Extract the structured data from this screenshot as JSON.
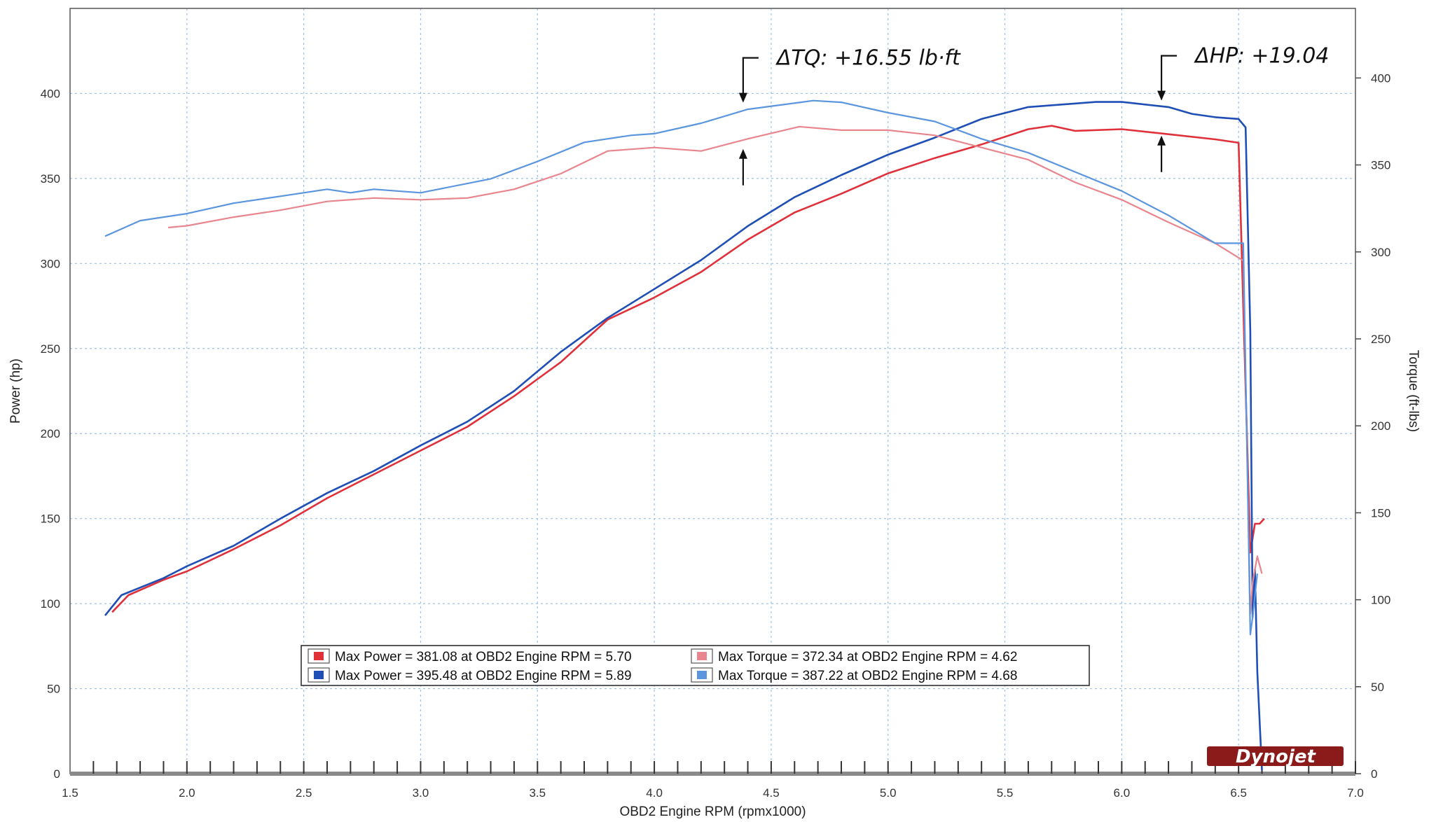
{
  "chart_data": {
    "type": "line",
    "xlabel": "OBD2 Engine RPM (rpmx1000)",
    "ylabel_left": "Power (hp)",
    "ylabel_right": "Torque (ft-lbs)",
    "xlim": [
      1.5,
      7.0
    ],
    "ylim_left": [
      0,
      450
    ],
    "ylim_right": [
      0,
      440
    ],
    "x_ticks": [
      "1.5",
      "2.0",
      "2.5",
      "3.0",
      "3.5",
      "4.0",
      "4.5",
      "5.0",
      "5.5",
      "6.0",
      "6.5",
      "7.0"
    ],
    "y_left_ticks": [
      "0",
      "50",
      "100",
      "150",
      "200",
      "250",
      "300",
      "350",
      "400"
    ],
    "y_right_ticks": [
      "0",
      "50",
      "100",
      "150",
      "200",
      "250",
      "300",
      "350",
      "400"
    ],
    "grid": true,
    "colors": {
      "power_run1": "#e0303a",
      "power_run2": "#1f4fb5",
      "torque_run1": "#e8858e",
      "torque_run2": "#5a95de"
    },
    "series": [
      {
        "key": "power_run1",
        "axis": "left",
        "x": [
          1.68,
          1.75,
          1.9,
          2.0,
          2.2,
          2.4,
          2.6,
          2.8,
          3.0,
          3.2,
          3.4,
          3.6,
          3.8,
          4.0,
          4.2,
          4.4,
          4.6,
          4.8,
          5.0,
          5.2,
          5.4,
          5.6,
          5.7,
          5.8,
          6.0,
          6.2,
          6.4,
          6.5,
          6.55,
          6.57,
          6.59,
          6.61
        ],
        "y": [
          95,
          105,
          114,
          119,
          132,
          146,
          162,
          176,
          190,
          204,
          222,
          242,
          267,
          280,
          295,
          314,
          330,
          341,
          353,
          362,
          370,
          379,
          381,
          378,
          379,
          376,
          373,
          371,
          130,
          147,
          147,
          150
        ]
      },
      {
        "key": "power_run2",
        "axis": "left",
        "x": [
          1.65,
          1.72,
          1.9,
          2.0,
          2.2,
          2.4,
          2.6,
          2.8,
          3.0,
          3.2,
          3.4,
          3.6,
          3.8,
          4.0,
          4.2,
          4.4,
          4.6,
          4.8,
          5.0,
          5.2,
          5.4,
          5.6,
          5.89,
          6.0,
          6.2,
          6.3,
          6.4,
          6.5,
          6.53,
          6.55,
          6.56,
          6.57,
          6.58,
          6.6
        ],
        "y": [
          93,
          105,
          115,
          122,
          134,
          150,
          165,
          178,
          193,
          207,
          225,
          248,
          268,
          285,
          302,
          322,
          339,
          352,
          364,
          374,
          385,
          392,
          395,
          395,
          392,
          388,
          386,
          385,
          380,
          260,
          92,
          120,
          60,
          2
        ]
      },
      {
        "key": "torque_run1",
        "axis": "right",
        "x": [
          1.92,
          2.0,
          2.2,
          2.4,
          2.6,
          2.8,
          3.0,
          3.2,
          3.4,
          3.6,
          3.8,
          4.0,
          4.2,
          4.4,
          4.62,
          4.8,
          5.0,
          5.2,
          5.4,
          5.6,
          5.8,
          6.0,
          6.2,
          6.4,
          6.52,
          6.55,
          6.56,
          6.58,
          6.6
        ],
        "y": [
          314,
          315,
          320,
          324,
          329,
          331,
          330,
          331,
          336,
          345,
          358,
          360,
          358,
          365,
          372,
          370,
          370,
          367,
          360,
          353,
          340,
          330,
          317,
          305,
          295,
          92,
          110,
          125,
          115
        ]
      },
      {
        "key": "torque_run2",
        "axis": "right",
        "x": [
          1.65,
          1.8,
          2.0,
          2.2,
          2.4,
          2.6,
          2.7,
          2.8,
          3.0,
          3.3,
          3.5,
          3.7,
          3.9,
          4.0,
          4.2,
          4.4,
          4.68,
          4.8,
          5.0,
          5.2,
          5.4,
          5.6,
          5.8,
          6.0,
          6.2,
          6.4,
          6.52,
          6.55,
          6.56,
          6.58
        ],
        "y": [
          309,
          318,
          322,
          328,
          332,
          336,
          334,
          336,
          334,
          342,
          352,
          363,
          367,
          368,
          374,
          382,
          387,
          386,
          380,
          375,
          365,
          357,
          346,
          335,
          321,
          305,
          305,
          80,
          90,
          115
        ]
      }
    ],
    "legend": {
      "placement": "bottom-center",
      "entries": [
        {
          "key": "power_run1",
          "text": "Max Power = 381.08 at OBD2 Engine RPM = 5.70"
        },
        {
          "key": "torque_run1",
          "text": "Max Torque = 372.34 at OBD2 Engine RPM = 4.62"
        },
        {
          "key": "power_run2",
          "text": "Max Power = 395.48 at OBD2 Engine RPM = 5.89"
        },
        {
          "key": "torque_run2",
          "text": "Max Torque = 387.22 at OBD2 Engine RPM = 4.68"
        }
      ]
    },
    "annotations": [
      {
        "text": "ΔTQ: +16.55 lb·ft",
        "x": 4.38,
        "y_top": 385,
        "y_bottom": 360,
        "axis": "right"
      },
      {
        "text": "ΔHP: +19.04",
        "x": 6.17,
        "y_top": 395,
        "y_bottom": 376,
        "axis": "left"
      }
    ],
    "logo": "Dynojet"
  }
}
